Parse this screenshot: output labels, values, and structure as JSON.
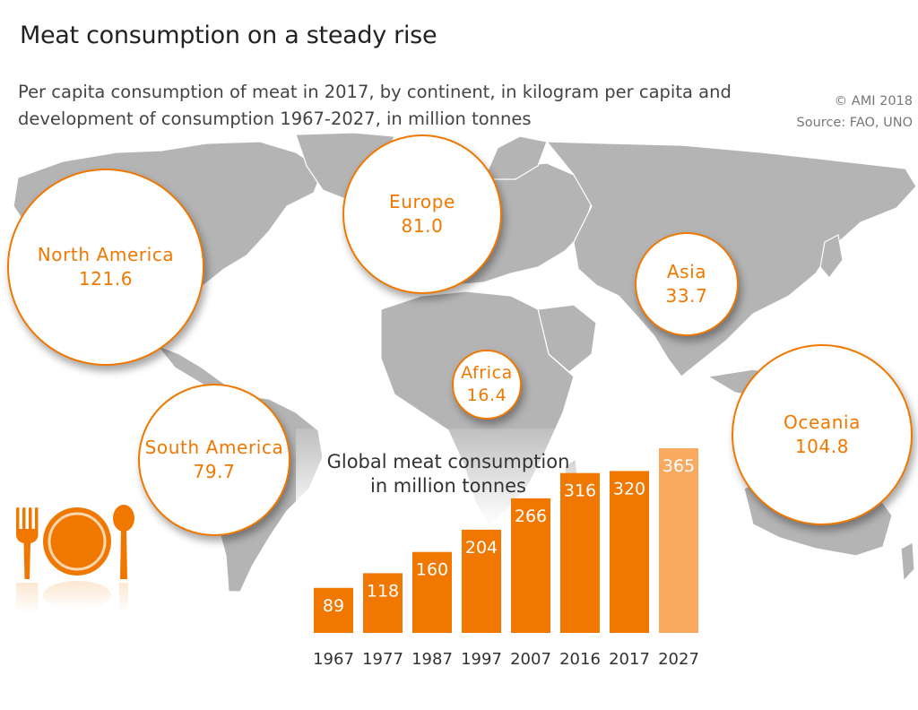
{
  "header": {
    "title": "Meat consumption on a steady rise",
    "subtitle_line1": "Per capita consumption of meat in 2017, by continent, in kilogram per capita and",
    "subtitle_line2": "development of consumption 1967-2027, in million tonnes",
    "copyright": "© AMI 2018",
    "source": "Source: FAO, UNO"
  },
  "colors": {
    "accent": "#f07800",
    "forecast": "#f9a960",
    "map_land": "#b4b4b4",
    "map_border": "#ffffff"
  },
  "continents": [
    {
      "name": "North America",
      "value": "121.6"
    },
    {
      "name": "Europe",
      "value": "81.0"
    },
    {
      "name": "Asia",
      "value": "33.7"
    },
    {
      "name": "Africa",
      "value": "16.4"
    },
    {
      "name": "South America",
      "value": "79.7"
    },
    {
      "name": "Oceania",
      "value": "104.8"
    }
  ],
  "icons": [
    "fork-icon",
    "plate-icon",
    "spoon-icon"
  ],
  "chart_data": {
    "type": "bar",
    "title_line1": "Global meat consumption",
    "title_line2": "in million tonnes",
    "categories": [
      "1967",
      "1977",
      "1987",
      "1997",
      "2007",
      "2016",
      "2017",
      "2027"
    ],
    "values": [
      89,
      118,
      160,
      204,
      266,
      316,
      320,
      365
    ],
    "forecast_categories": [
      "2027"
    ],
    "xlabel": "",
    "ylabel": "",
    "ylim": [
      0,
      365
    ],
    "grid": false
  }
}
